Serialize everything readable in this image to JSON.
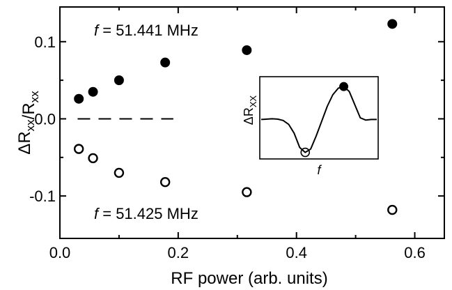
{
  "chart_data": {
    "type": "scatter",
    "xlabel": "RF power (arb. units)",
    "ylabel": "ΔR_xx/R_xx",
    "xlim": [
      0.0,
      0.65
    ],
    "ylim": [
      -0.155,
      0.145
    ],
    "x_ticks": [
      0.0,
      0.2,
      0.4,
      0.6
    ],
    "x_tick_labels": [
      "0.0",
      "0.2",
      "0.4",
      "0.6"
    ],
    "y_ticks": [
      -0.1,
      0.0,
      0.1
    ],
    "y_tick_labels": [
      "-0.1",
      "0.0",
      "0.1"
    ],
    "x_minor_ticks": [
      0.1,
      0.3,
      0.5
    ],
    "y_minor_ticks": [
      -0.05,
      0.05
    ],
    "grid": false,
    "zero_line": {
      "y": 0.0,
      "style": "dashed",
      "x_range": [
        0.03,
        0.18
      ]
    },
    "series": [
      {
        "label": "f = 51.441 MHz",
        "marker": "filled-circle",
        "x": [
          0.032,
          0.056,
          0.1,
          0.178,
          0.316,
          0.562
        ],
        "y": [
          0.026,
          0.035,
          0.05,
          0.073,
          0.089,
          0.123
        ]
      },
      {
        "label": "f = 51.425 MHz",
        "marker": "open-circle",
        "x": [
          0.032,
          0.056,
          0.1,
          0.178,
          0.316,
          0.562
        ],
        "y": [
          -0.039,
          -0.051,
          -0.07,
          -0.082,
          -0.095,
          -0.118
        ]
      }
    ],
    "annotations": [
      {
        "italic": "f",
        "rest": " = 51.441 MHz",
        "at": "upper-left"
      },
      {
        "italic": "f",
        "rest": " = 51.425 MHz",
        "at": "lower-left"
      }
    ],
    "inset": {
      "ylabel": "ΔR_XX",
      "xlabel": "f",
      "curve_y": [
        0.0,
        0.01,
        0.02,
        0.01,
        -0.03,
        -0.15,
        -0.42,
        -0.85,
        -1.0,
        -0.9,
        -0.5,
        -0.05,
        0.4,
        0.75,
        0.95,
        1.0,
        0.85,
        0.45,
        0.05,
        -0.02,
        0.0,
        0.0
      ],
      "marker_open_index": 8,
      "marker_filled_index": 15
    }
  }
}
